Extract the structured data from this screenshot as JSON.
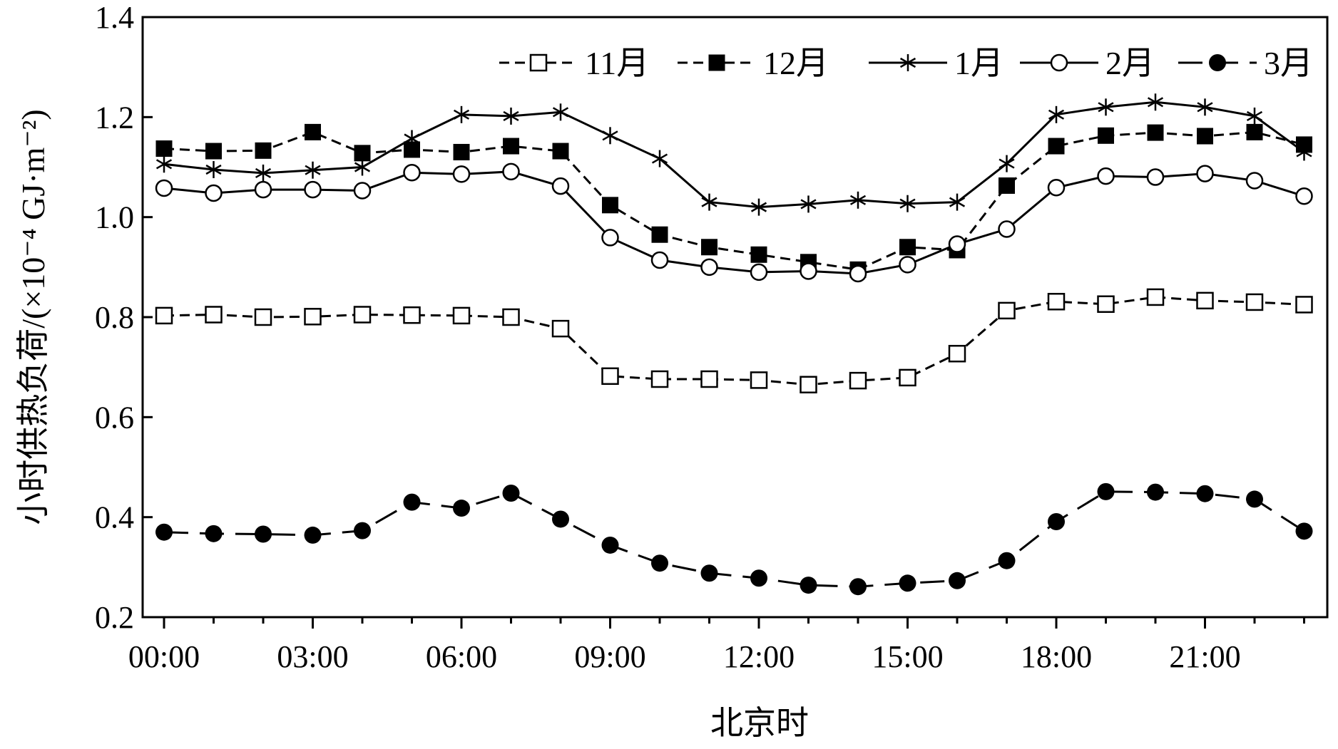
{
  "chart_data": {
    "type": "line",
    "title": "",
    "xlabel": "北京时",
    "ylabel": "小时供热负荷/(×10⁻⁴ GJ·m⁻²)",
    "ylim": [
      0.2,
      1.4
    ],
    "yticks": [
      "0.2",
      "0.4",
      "0.6",
      "0.8",
      "1.0",
      "1.2",
      "1.4"
    ],
    "xticks": [
      "00:00",
      "03:00",
      "06:00",
      "09:00",
      "12:00",
      "15:00",
      "18:00",
      "21:00"
    ],
    "x": [
      "00:00",
      "01:00",
      "02:00",
      "03:00",
      "04:00",
      "05:00",
      "06:00",
      "07:00",
      "08:00",
      "09:00",
      "10:00",
      "11:00",
      "12:00",
      "13:00",
      "14:00",
      "15:00",
      "16:00",
      "17:00",
      "18:00",
      "19:00",
      "20:00",
      "21:00",
      "22:00",
      "23:00"
    ],
    "grid": false,
    "legend_position": "top-right",
    "series": [
      {
        "name": "11月",
        "marker": "open-square",
        "line": "dashed",
        "color": "#000000",
        "values": [
          0.803,
          0.805,
          0.8,
          0.801,
          0.805,
          0.804,
          0.803,
          0.8,
          0.777,
          0.682,
          0.676,
          0.676,
          0.674,
          0.665,
          0.673,
          0.679,
          0.727,
          0.813,
          0.831,
          0.826,
          0.84,
          0.833,
          0.83,
          0.825
        ]
      },
      {
        "name": "12月",
        "marker": "filled-square",
        "line": "dashed",
        "color": "#000000",
        "values": [
          1.137,
          1.132,
          1.133,
          1.17,
          1.128,
          1.135,
          1.13,
          1.142,
          1.132,
          1.024,
          0.965,
          0.94,
          0.925,
          0.91,
          0.895,
          0.94,
          0.934,
          1.063,
          1.142,
          1.163,
          1.169,
          1.162,
          1.17,
          1.145
        ]
      },
      {
        "name": "1月",
        "marker": "asterisk",
        "line": "solid",
        "color": "#000000",
        "values": [
          1.106,
          1.095,
          1.088,
          1.094,
          1.1,
          1.157,
          1.205,
          1.202,
          1.21,
          1.163,
          1.117,
          1.03,
          1.02,
          1.026,
          1.034,
          1.027,
          1.03,
          1.107,
          1.205,
          1.22,
          1.23,
          1.22,
          1.202,
          1.13
        ]
      },
      {
        "name": "2月",
        "marker": "open-circle",
        "line": "solid",
        "color": "#000000",
        "values": [
          1.058,
          1.048,
          1.055,
          1.055,
          1.053,
          1.089,
          1.086,
          1.091,
          1.062,
          0.959,
          0.914,
          0.9,
          0.89,
          0.892,
          0.887,
          0.905,
          0.946,
          0.976,
          1.059,
          1.082,
          1.08,
          1.087,
          1.073,
          1.042
        ]
      },
      {
        "name": "3月",
        "marker": "filled-circle",
        "line": "long-dashed",
        "color": "#000000",
        "values": [
          0.37,
          0.367,
          0.366,
          0.364,
          0.373,
          0.43,
          0.418,
          0.448,
          0.396,
          0.344,
          0.308,
          0.288,
          0.278,
          0.264,
          0.261,
          0.268,
          0.273,
          0.313,
          0.391,
          0.451,
          0.45,
          0.447,
          0.436,
          0.372
        ]
      }
    ]
  }
}
